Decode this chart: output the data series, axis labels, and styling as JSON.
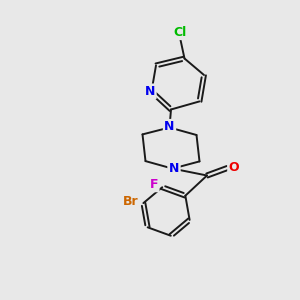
{
  "background_color": "#e8e8e8",
  "bond_color": "#1a1a1a",
  "atom_colors": {
    "Cl": "#00bb00",
    "N": "#0000ee",
    "Br": "#cc6600",
    "F": "#cc00cc",
    "O": "#ee0000"
  },
  "figsize": [
    3.0,
    3.0
  ],
  "dpi": 100,
  "lw": 1.4,
  "fs": 8.5
}
